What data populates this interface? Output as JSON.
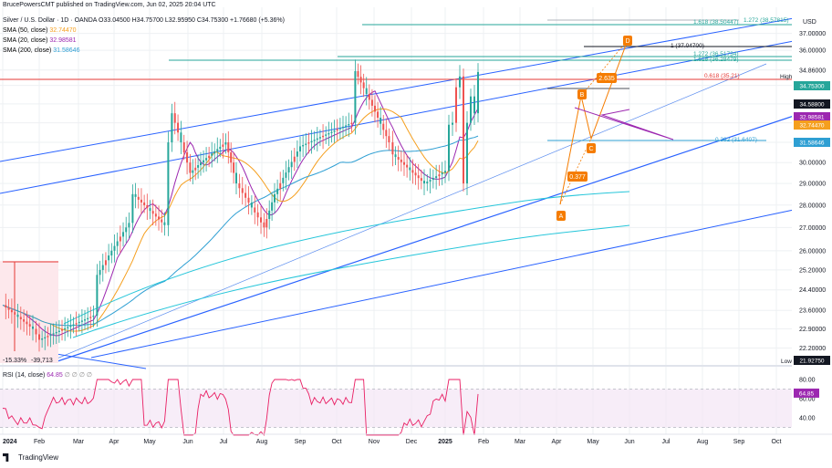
{
  "header": {
    "publisher": "BrucePowersCMT published on TradingView.com, Jun 02, 2025 20:04 UTC",
    "symbol": "Silver / U.S. Dollar · 1D · OANDA",
    "ohlc": "O33.04500 H34.75700 L32.95950 C34.75300 +1.76680 (+5.36%)"
  },
  "legend": [
    {
      "label": "SMA (50, close)",
      "value": "32.74470",
      "color": "#f59f1e"
    },
    {
      "label": "SMA (20, close)",
      "value": "32.98581",
      "color": "#9c27b0"
    },
    {
      "label": "SMA (200, close)",
      "value": "31.58646",
      "color": "#2e9fd3"
    }
  ],
  "rsi_legend": {
    "label": "RSI (14, close)",
    "value": "64.85",
    "extra": "∅ ∅ ∅ ∅"
  },
  "footer": {
    "brand": "TradingView"
  },
  "chart_data": {
    "type": "line",
    "title": "Silver / U.S. Dollar · 1D · OANDA",
    "currency": "USD",
    "x_ticks": [
      "2024",
      "Feb",
      "Mar",
      "Apr",
      "May",
      "Jun",
      "Jul",
      "Aug",
      "Sep",
      "Oct",
      "Nov",
      "Dec",
      "2025",
      "Feb",
      "Mar",
      "Apr",
      "May",
      "Jun",
      "Jul",
      "Aug",
      "Sep",
      "Oct"
    ],
    "y_ticks": [
      37.0,
      36.0,
      34.86,
      34.0,
      33.0,
      32.0,
      31.0,
      30.0,
      29.0,
      28.0,
      27.0,
      26.0,
      25.2,
      24.4,
      23.6,
      22.9,
      22.2
    ],
    "log_scale": true,
    "series": [
      {
        "name": "Silver close",
        "color": "#26a69a",
        "points": [
          [
            "2024",
            23.8
          ],
          [
            "Jan",
            22.9
          ],
          [
            "Feb",
            22.5
          ],
          [
            "Mar",
            23.4
          ],
          [
            "Mar",
            25.0
          ],
          [
            "Apr",
            27.2
          ],
          [
            "Apr",
            28.5
          ],
          [
            "May",
            27.1
          ],
          [
            "May",
            31.0
          ],
          [
            "May",
            32.5
          ],
          [
            "Jun",
            29.5
          ],
          [
            "Jun",
            30.0
          ],
          [
            "Jul",
            31.0
          ],
          [
            "Jul",
            29.0
          ],
          [
            "Aug",
            27.0
          ],
          [
            "Aug",
            28.5
          ],
          [
            "Sep",
            30.8
          ],
          [
            "Oct",
            32.0
          ],
          [
            "Oct",
            34.8
          ],
          [
            "Nov",
            31.0
          ],
          [
            "Nov",
            30.4
          ],
          [
            "Dec",
            29.0
          ],
          [
            "2025",
            29.6
          ],
          [
            "Feb",
            31.9
          ],
          [
            "Feb",
            32.0
          ],
          [
            "Mar",
            33.9
          ],
          [
            "Mar",
            34.5
          ],
          [
            "Apr",
            29.0
          ],
          [
            "Apr",
            32.0
          ],
          [
            "May",
            33.4
          ],
          [
            "May",
            32.5
          ],
          [
            "Jun",
            34.75
          ]
        ]
      },
      {
        "name": "SMA (50, close)",
        "value": "32.74470",
        "color": "#f59f1e"
      },
      {
        "name": "SMA (20, close)",
        "value": "32.98581",
        "color": "#9c27b0"
      },
      {
        "name": "SMA (200, close)",
        "value": "31.58646",
        "color": "#2e9fd3"
      }
    ],
    "price_labels": [
      {
        "text": "34.75300",
        "color": "#26a69a"
      },
      {
        "text": "34.58800",
        "color": "#131722"
      },
      {
        "text": "32.98581",
        "color": "#9c27b0"
      },
      {
        "text": "32.74470",
        "color": "#f59f1e"
      },
      {
        "text": "31.58646",
        "color": "#2e9fd3"
      },
      {
        "text": "21.92750",
        "color": "#131722"
      }
    ],
    "level_labels": [
      {
        "text": "1.272 (38.57815)",
        "color": "#26a69a"
      },
      {
        "text": "1.618 (38.50447)",
        "color": "#26a69a"
      },
      {
        "text": "1 (37.04700)",
        "color": "#131722"
      },
      {
        "text": "1.272 (36.51734)",
        "color": "#26a69a"
      },
      {
        "text": "1.618 (36.28479)",
        "color": "#26a69a"
      },
      {
        "text": "0.618 (35.21)",
        "color": "#e53935"
      },
      {
        "text": "0.382 (31.6407)",
        "color": "#2e9fd3"
      }
    ],
    "text_labels": [
      "High",
      "Low",
      "56:00",
      "USD"
    ],
    "pattern_labels": [
      "A",
      "B",
      "C",
      "D"
    ],
    "annotations": [
      "2.635",
      "0.377",
      "-15.33%",
      "-39,713"
    ],
    "rsi": {
      "value": 64.85,
      "ticks": [
        "80.00",
        "60.00",
        "40.00"
      ]
    }
  }
}
